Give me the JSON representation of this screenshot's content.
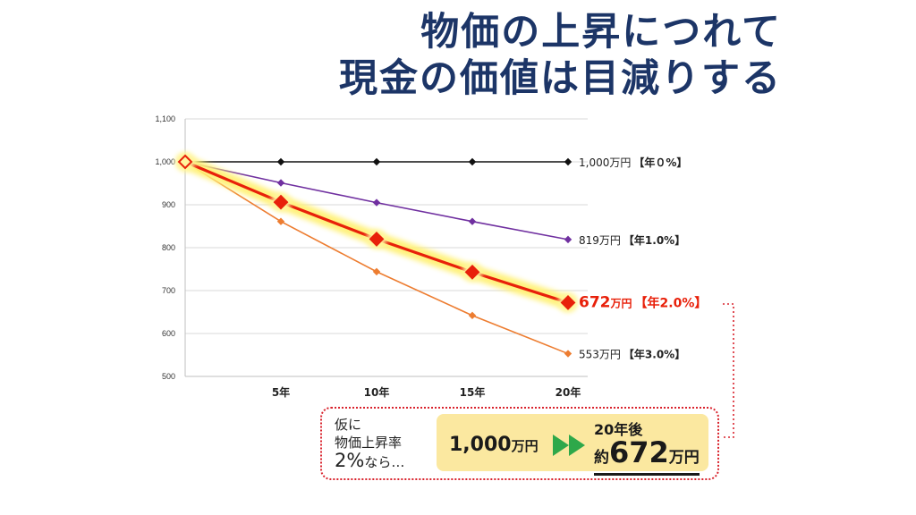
{
  "title": {
    "line1": "物価の上昇につれて",
    "line2": "現金の価値は目減りする"
  },
  "chart_data": {
    "type": "line",
    "categories": [
      "",
      "5年",
      "10年",
      "15年",
      "20年"
    ],
    "ylim": [
      500,
      1100
    ],
    "yticks": [
      "500",
      "600",
      "700",
      "800",
      "900",
      "1,000",
      "1,100"
    ],
    "grid": true,
    "series": [
      {
        "values": [
          1000,
          1000,
          1000,
          1000,
          1000
        ],
        "color": "#111111",
        "highlight": false,
        "label": {
          "num": "1,000",
          "unit": "万円",
          "rate": "【年０%】"
        }
      },
      {
        "values": [
          1000,
          951,
          905,
          861,
          819
        ],
        "color": "#7030a0",
        "highlight": false,
        "label": {
          "num": "819",
          "unit": "万円",
          "rate": "【年1.0%】"
        }
      },
      {
        "values": [
          1000,
          906,
          820,
          743,
          672
        ],
        "color": "#e8200a",
        "highlight": true,
        "label": {
          "num": "672",
          "unit": "万円",
          "rate": "【年2.0%】"
        }
      },
      {
        "values": [
          1000,
          861,
          744,
          642,
          553
        ],
        "color": "#ed7d31",
        "highlight": false,
        "label": {
          "num": "553",
          "unit": "万円",
          "rate": "【年3.0%】"
        }
      }
    ]
  },
  "callout": {
    "assume_line1": "仮に",
    "assume_line2": "物価上昇率",
    "assume_big": "2%",
    "assume_tail": "なら…",
    "from_value": "1,000",
    "from_unit": "万円",
    "after_label": "20年後",
    "after_prefix": "約",
    "after_value": "672",
    "after_unit": "万円",
    "arrow_color": "#2ea84a",
    "box_color": "#fbe8a0",
    "border_color": "#d9232d"
  }
}
